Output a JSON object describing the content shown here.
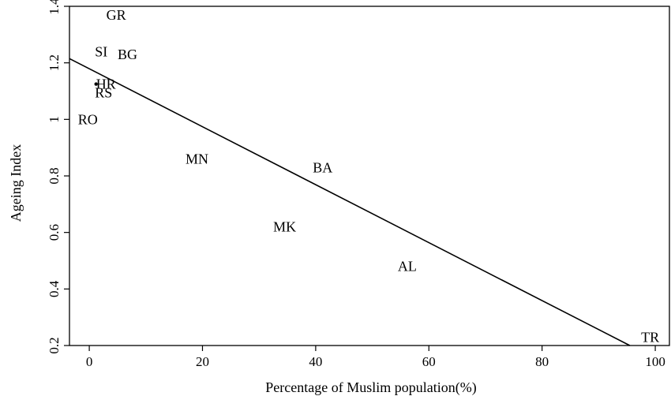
{
  "chart_data": {
    "type": "scatter",
    "xlabel": "Percentage of Muslim population(%)",
    "ylabel": "Ageing Index",
    "xlim": [
      -3.5,
      102.5
    ],
    "ylim": [
      0.2,
      1.4
    ],
    "xticks": [
      0,
      20,
      40,
      60,
      80,
      100
    ],
    "xtick_labels": [
      "0",
      "20",
      "40",
      "60",
      "80",
      "100"
    ],
    "yticks": [
      0.2,
      0.4,
      0.6,
      0.8,
      1,
      1.2,
      1.4
    ],
    "ytick_labels": [
      "0.2",
      "0.4",
      "0.6",
      "0.8",
      "1",
      "1.2",
      "1.4"
    ],
    "grid": false,
    "points": [
      {
        "label": "GR",
        "x": 3,
        "y": 1.37
      },
      {
        "label": "SI",
        "x": 1,
        "y": 1.24
      },
      {
        "label": "BG",
        "x": 5,
        "y": 1.23
      },
      {
        "label": "HR",
        "x": 1.2,
        "y": 1.125
      },
      {
        "label": "RS",
        "x": 1,
        "y": 1.095
      },
      {
        "label": "RO",
        "x": -2,
        "y": 1.0
      },
      {
        "label": "MN",
        "x": 17,
        "y": 0.86
      },
      {
        "label": "BA",
        "x": 39.5,
        "y": 0.83
      },
      {
        "label": "MK",
        "x": 32.5,
        "y": 0.62
      },
      {
        "label": "AL",
        "x": 54.5,
        "y": 0.48
      },
      {
        "label": "TR",
        "x": 97.5,
        "y": 0.23
      }
    ],
    "fit_line": {
      "x": [
        -3.5,
        95.5
      ],
      "y": [
        1.215,
        0.2
      ]
    }
  }
}
